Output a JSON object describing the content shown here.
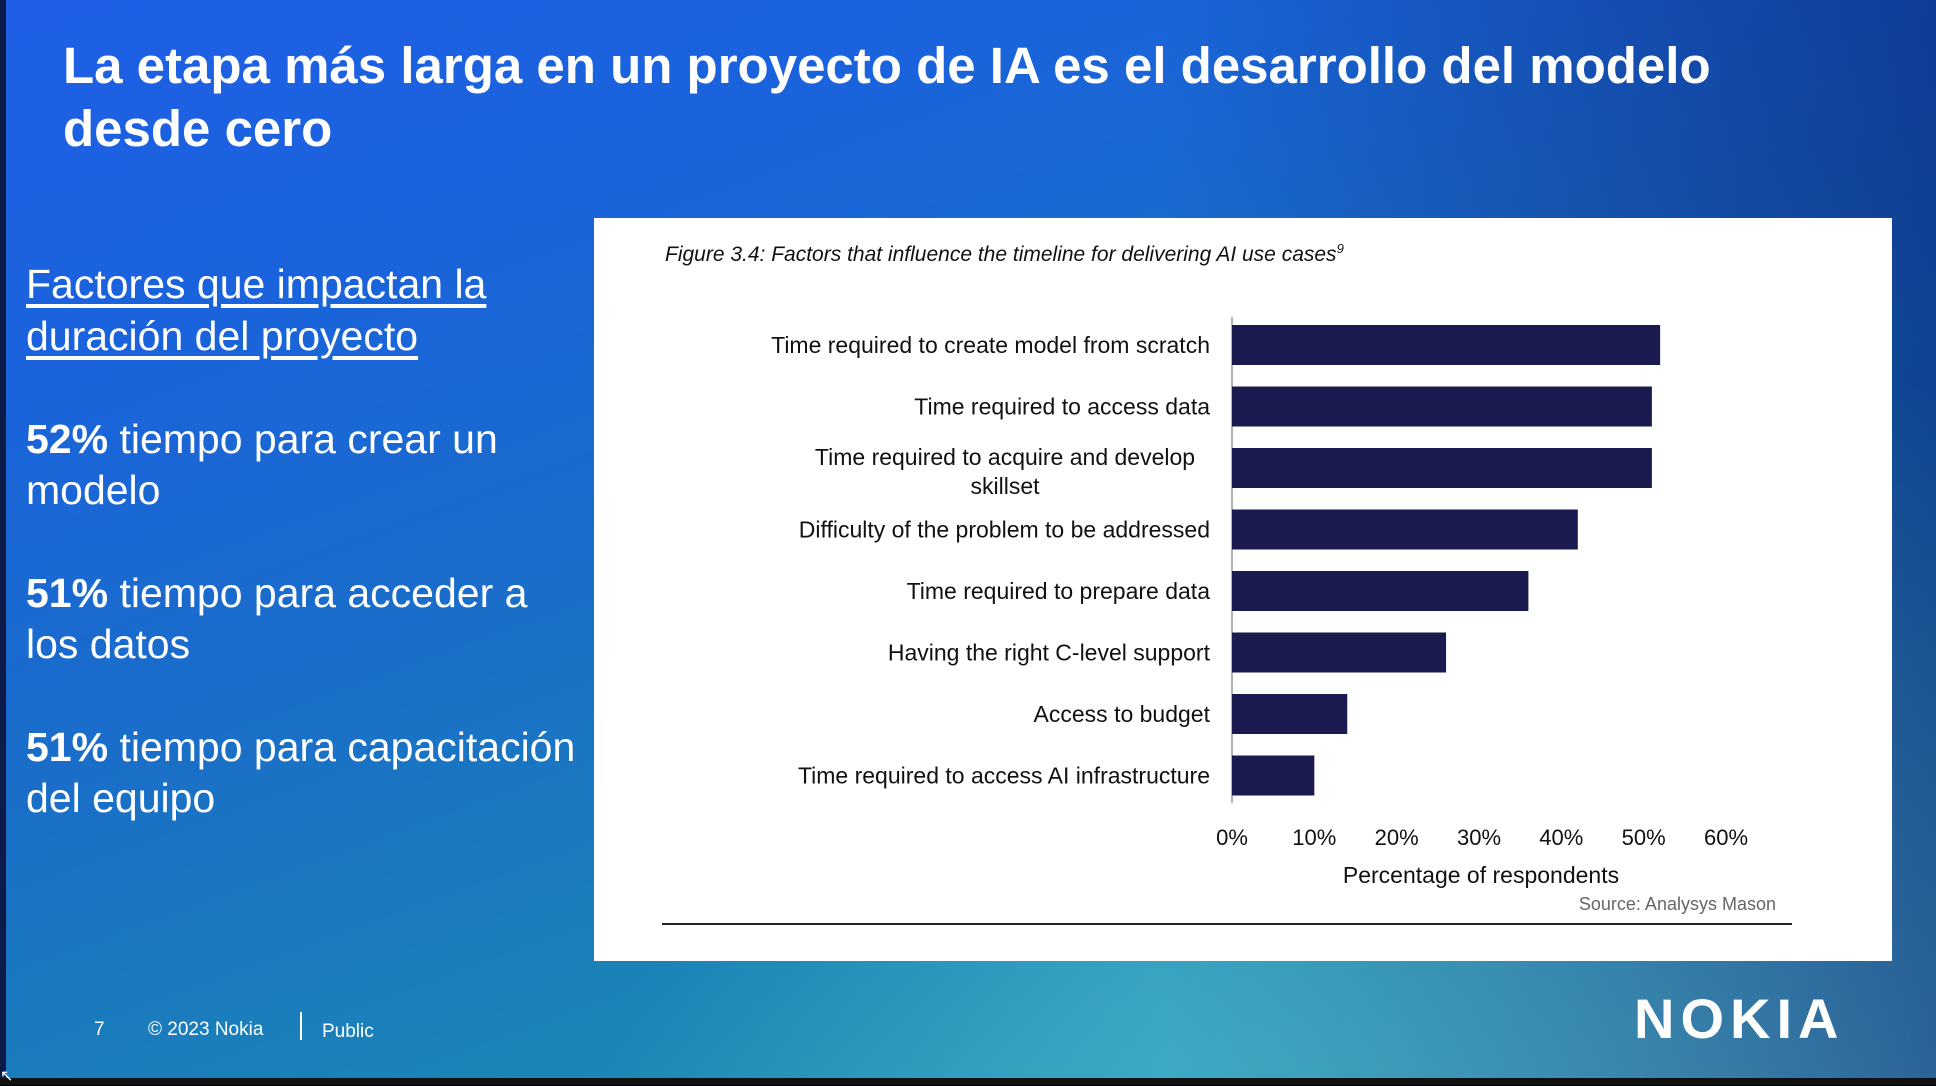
{
  "slide": {
    "title": "La etapa más larga en un proyecto de IA es el desarrollo del modelo desde cero",
    "subhead": "Factores que impactan la duración del proyecto",
    "stats": [
      {
        "value": "52%",
        "text": " tiempo para crear un modelo"
      },
      {
        "value": "51%",
        "text": " tiempo para acceder a los datos"
      },
      {
        "value": "51%",
        "text": " tiempo para capacitación del equipo"
      }
    ],
    "footer": {
      "page": "7",
      "copyright": "© 2023 Nokia",
      "classification": "Public"
    },
    "logo": "NOKIA"
  },
  "figure": {
    "caption": "Figure 3.4: Factors that influence the timeline for delivering AI use cases",
    "caption_sup": "9",
    "source": "Source: Analysys Mason"
  },
  "chart_data": {
    "type": "bar",
    "orientation": "horizontal",
    "categories": [
      "Time required to create model from scratch",
      "Time required to access data",
      "Time required to acquire and develop skillset",
      "Difficulty of the problem to be addressed",
      "Time required to prepare data",
      "Having the right C-level support",
      "Access to budget",
      "Time required to access AI infrastructure"
    ],
    "values": [
      52,
      51,
      51,
      42,
      36,
      26,
      14,
      10
    ],
    "xlabel": "Percentage of respondents",
    "xlim": [
      0,
      60
    ],
    "xticks": [
      "0%",
      "10%",
      "20%",
      "30%",
      "40%",
      "50%",
      "60%"
    ],
    "bar_color": "#1b1a4f",
    "grid": false
  },
  "colors": {
    "background_start": "#1f5fe6",
    "background_end": "#5ec9d0",
    "bar": "#1b1a4f"
  }
}
